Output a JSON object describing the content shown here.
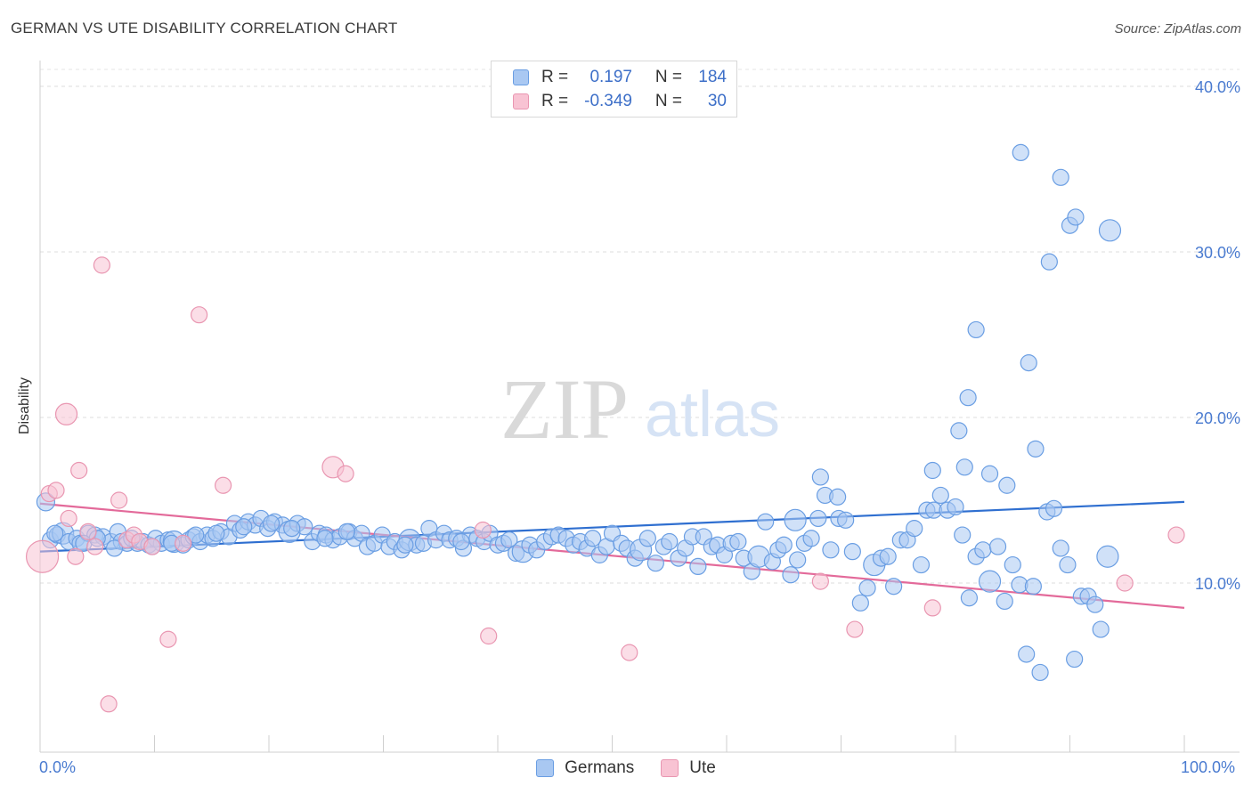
{
  "title": "GERMAN VS UTE DISABILITY CORRELATION CHART",
  "source": "Source: ZipAtlas.com",
  "watermark": {
    "zip": "ZIP",
    "atlas": "atlas"
  },
  "legend": {
    "rows": [
      {
        "r_label": "R =",
        "r_value": "0.197",
        "n_label": "N =",
        "n_value": "184",
        "color": "#a9c8f2",
        "border": "#6a9ee3"
      },
      {
        "r_label": "R =",
        "r_value": "-0.349",
        "n_label": "N =",
        "n_value": "30",
        "color": "#f8c3d3",
        "border": "#e996b1"
      }
    ]
  },
  "bottom_legend": [
    {
      "label": "Germans",
      "color": "#a9c8f2",
      "border": "#6a9ee3"
    },
    {
      "label": "Ute",
      "color": "#f8c3d3",
      "border": "#e996b1"
    }
  ],
  "chart_data": {
    "type": "scatter",
    "title": "GERMAN VS UTE DISABILITY CORRELATION CHART",
    "xlabel": "",
    "ylabel": "Disability",
    "xlim": [
      0,
      100
    ],
    "ylim": [
      0,
      42
    ],
    "x_tick_labels": [
      "0.0%",
      "100.0%"
    ],
    "y_ticks": [
      10,
      20,
      30,
      40
    ],
    "y_tick_labels": [
      "10.0%",
      "20.0%",
      "30.0%",
      "40.0%"
    ],
    "grid": "horizontal dashed",
    "series": [
      {
        "name": "Germans",
        "color": "#6a9ee3",
        "fill": "#a9c8f2",
        "trend": {
          "x": [
            0,
            100
          ],
          "y": [
            11.9,
            14.9
          ],
          "color": "#2f6fd0"
        },
        "points": [
          [
            0.5,
            14.9
          ],
          [
            0.9,
            12.6
          ],
          [
            1.5,
            12.9
          ],
          [
            2.0,
            13.0
          ],
          [
            2.5,
            12.5
          ],
          [
            3.2,
            12.7
          ],
          [
            3.5,
            12.4
          ],
          [
            4.2,
            13.0
          ],
          [
            4.8,
            12.9
          ],
          [
            5.5,
            12.8
          ],
          [
            6.2,
            12.5
          ],
          [
            6.8,
            13.1
          ],
          [
            7.1,
            12.5
          ],
          [
            7.6,
            12.4
          ],
          [
            8.5,
            12.4
          ],
          [
            9.0,
            12.5
          ],
          [
            9.5,
            12.3
          ],
          [
            10.1,
            12.7
          ],
          [
            10.6,
            12.4
          ],
          [
            11.2,
            12.6
          ],
          [
            11.7,
            12.5
          ],
          [
            12.5,
            12.3
          ],
          [
            13.0,
            12.6
          ],
          [
            13.4,
            12.8
          ],
          [
            14.0,
            12.5
          ],
          [
            14.6,
            12.9
          ],
          [
            15.1,
            12.7
          ],
          [
            15.8,
            13.1
          ],
          [
            16.5,
            12.8
          ],
          [
            17.0,
            13.6
          ],
          [
            17.5,
            13.2
          ],
          [
            18.2,
            13.7
          ],
          [
            18.8,
            13.5
          ],
          [
            19.3,
            13.9
          ],
          [
            19.9,
            13.3
          ],
          [
            20.5,
            13.7
          ],
          [
            21.2,
            13.5
          ],
          [
            21.8,
            13.1
          ],
          [
            22.5,
            13.6
          ],
          [
            23.1,
            13.4
          ],
          [
            23.8,
            12.5
          ],
          [
            24.4,
            13.0
          ],
          [
            25.0,
            12.9
          ],
          [
            25.6,
            12.6
          ],
          [
            26.2,
            12.8
          ],
          [
            27.0,
            13.1
          ],
          [
            27.5,
            12.7
          ],
          [
            28.1,
            13.0
          ],
          [
            28.6,
            12.2
          ],
          [
            29.2,
            12.4
          ],
          [
            29.9,
            12.9
          ],
          [
            30.5,
            12.2
          ],
          [
            31.0,
            12.5
          ],
          [
            31.6,
            12.0
          ],
          [
            32.3,
            12.6
          ],
          [
            32.9,
            12.3
          ],
          [
            33.5,
            12.4
          ],
          [
            34.0,
            13.3
          ],
          [
            34.6,
            12.6
          ],
          [
            35.3,
            13.0
          ],
          [
            35.8,
            12.6
          ],
          [
            36.4,
            12.7
          ],
          [
            37.0,
            12.1
          ],
          [
            37.6,
            12.9
          ],
          [
            38.2,
            12.7
          ],
          [
            38.8,
            12.5
          ],
          [
            39.3,
            13.0
          ],
          [
            40.0,
            12.3
          ],
          [
            40.5,
            12.4
          ],
          [
            41.0,
            12.6
          ],
          [
            41.6,
            11.8
          ],
          [
            42.2,
            11.9
          ],
          [
            42.8,
            12.3
          ],
          [
            43.4,
            12.0
          ],
          [
            44.1,
            12.5
          ],
          [
            44.7,
            12.8
          ],
          [
            45.3,
            12.9
          ],
          [
            46.0,
            12.7
          ],
          [
            46.6,
            12.3
          ],
          [
            47.2,
            12.5
          ],
          [
            47.8,
            12.1
          ],
          [
            48.3,
            12.7
          ],
          [
            48.9,
            11.7
          ],
          [
            49.5,
            12.2
          ],
          [
            50.0,
            13.0
          ],
          [
            50.8,
            12.4
          ],
          [
            51.3,
            12.1
          ],
          [
            52.0,
            11.5
          ],
          [
            52.5,
            12.0
          ],
          [
            53.1,
            12.7
          ],
          [
            53.8,
            11.2
          ],
          [
            54.5,
            12.2
          ],
          [
            55.0,
            12.5
          ],
          [
            55.8,
            11.5
          ],
          [
            56.4,
            12.1
          ],
          [
            57.0,
            12.8
          ],
          [
            57.5,
            11.0
          ],
          [
            58.0,
            12.8
          ],
          [
            58.7,
            12.2
          ],
          [
            59.2,
            12.3
          ],
          [
            59.8,
            11.7
          ],
          [
            60.4,
            12.4
          ],
          [
            61.0,
            12.5
          ],
          [
            61.5,
            11.5
          ],
          [
            62.2,
            10.7
          ],
          [
            62.8,
            11.6
          ],
          [
            63.4,
            13.7
          ],
          [
            64.0,
            11.3
          ],
          [
            64.5,
            12.0
          ],
          [
            65.0,
            12.3
          ],
          [
            65.6,
            10.5
          ],
          [
            66.2,
            11.4
          ],
          [
            66.8,
            12.4
          ],
          [
            67.4,
            12.7
          ],
          [
            68.0,
            13.9
          ],
          [
            68.6,
            15.3
          ],
          [
            69.1,
            12.0
          ],
          [
            69.8,
            13.9
          ],
          [
            70.4,
            13.8
          ],
          [
            71.0,
            11.9
          ],
          [
            71.7,
            8.8
          ],
          [
            72.3,
            9.7
          ],
          [
            72.9,
            11.1
          ],
          [
            73.5,
            11.5
          ],
          [
            74.1,
            11.6
          ],
          [
            74.6,
            9.8
          ],
          [
            75.2,
            12.6
          ],
          [
            75.8,
            12.6
          ],
          [
            76.4,
            13.3
          ],
          [
            77.0,
            11.1
          ],
          [
            77.5,
            14.4
          ],
          [
            78.1,
            14.4
          ],
          [
            78.7,
            15.3
          ],
          [
            79.3,
            14.4
          ],
          [
            80.0,
            14.6
          ],
          [
            80.6,
            12.9
          ],
          [
            81.2,
            9.1
          ],
          [
            81.8,
            11.6
          ],
          [
            82.4,
            12.0
          ],
          [
            83.0,
            10.1
          ],
          [
            83.7,
            12.2
          ],
          [
            84.3,
            8.9
          ],
          [
            85.0,
            11.1
          ],
          [
            85.6,
            9.9
          ],
          [
            86.2,
            5.7
          ],
          [
            86.8,
            9.8
          ],
          [
            87.4,
            4.6
          ],
          [
            88.0,
            14.3
          ],
          [
            88.6,
            14.5
          ],
          [
            89.2,
            12.1
          ],
          [
            89.8,
            11.1
          ],
          [
            90.4,
            5.4
          ],
          [
            91.0,
            9.2
          ],
          [
            91.6,
            9.2
          ],
          [
            92.2,
            8.7
          ],
          [
            92.7,
            7.2
          ],
          [
            93.3,
            11.6
          ],
          [
            1.3,
            13.0
          ],
          [
            3.8,
            12.4
          ],
          [
            5.0,
            12.7
          ],
          [
            6.5,
            12.1
          ],
          [
            8.0,
            12.7
          ],
          [
            9.8,
            12.2
          ],
          [
            11.5,
            12.4
          ],
          [
            13.6,
            12.9
          ],
          [
            15.4,
            13.0
          ],
          [
            17.8,
            13.4
          ],
          [
            20.2,
            13.6
          ],
          [
            22.0,
            13.3
          ],
          [
            24.9,
            12.7
          ],
          [
            26.8,
            13.1
          ],
          [
            31.9,
            12.3
          ],
          [
            36.8,
            12.5
          ],
          [
            66.0,
            13.8
          ],
          [
            68.2,
            16.4
          ],
          [
            69.7,
            15.2
          ],
          [
            78.0,
            16.8
          ],
          [
            80.8,
            17.0
          ],
          [
            80.3,
            19.2
          ],
          [
            81.1,
            21.2
          ],
          [
            81.8,
            25.3
          ],
          [
            83.0,
            16.6
          ],
          [
            84.5,
            15.9
          ],
          [
            85.7,
            36.0
          ],
          [
            86.4,
            23.3
          ],
          [
            87.0,
            18.1
          ],
          [
            88.2,
            29.4
          ],
          [
            89.2,
            34.5
          ],
          [
            90.0,
            31.6
          ],
          [
            90.5,
            32.1
          ],
          [
            93.5,
            31.3
          ]
        ]
      },
      {
        "name": "Ute",
        "color": "#e996b1",
        "fill": "#f8c3d3",
        "trend": {
          "x": [
            0,
            100
          ],
          "y": [
            14.8,
            8.5
          ],
          "color": "#e36a9a"
        },
        "points": [
          [
            0.2,
            11.6
          ],
          [
            0.8,
            15.4
          ],
          [
            1.4,
            15.6
          ],
          [
            2.3,
            20.2
          ],
          [
            2.5,
            13.9
          ],
          [
            3.1,
            11.6
          ],
          [
            3.4,
            16.8
          ],
          [
            4.2,
            13.1
          ],
          [
            4.8,
            12.2
          ],
          [
            5.4,
            29.2
          ],
          [
            6.0,
            2.7
          ],
          [
            6.9,
            15.0
          ],
          [
            7.6,
            12.6
          ],
          [
            8.2,
            12.9
          ],
          [
            8.7,
            12.5
          ],
          [
            9.8,
            12.2
          ],
          [
            11.2,
            6.6
          ],
          [
            12.5,
            12.4
          ],
          [
            13.9,
            26.2
          ],
          [
            16.0,
            15.9
          ],
          [
            25.6,
            17.0
          ],
          [
            26.7,
            16.6
          ],
          [
            38.7,
            13.2
          ],
          [
            39.2,
            6.8
          ],
          [
            51.5,
            5.8
          ],
          [
            68.2,
            10.1
          ],
          [
            71.2,
            7.2
          ],
          [
            78.0,
            8.5
          ],
          [
            94.8,
            10.0
          ],
          [
            99.3,
            12.9
          ]
        ]
      }
    ]
  }
}
